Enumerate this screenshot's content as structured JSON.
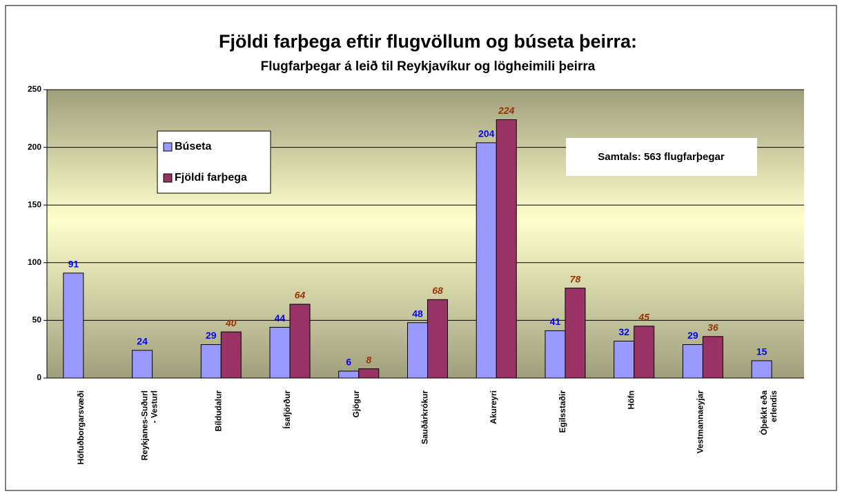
{
  "chart_data": {
    "type": "bar",
    "title": "Fjöldi farþega eftir flugvöllum og búseta þeirra:",
    "subtitle": "Flugfarþegar á leið til Reykjavíkur og lögheimili þeirra",
    "annotation": "Samtals: 563 flugfarþegar",
    "categories": [
      "Höfuðborgarsvæði",
      "Reykjanes-Suðurl\n- Vesturl",
      "Bíldudalur",
      "Ísafjörður",
      "Gjögur",
      "Sauðárkrókur",
      "Akureyri",
      "Egilsstaðir",
      "Höfn",
      "Vestmannaeyjar",
      "Óþekkt eða\nerlendis"
    ],
    "series": [
      {
        "name": "Búseta",
        "color": "#9999ff",
        "label_color": "#0000ff",
        "values": [
          91,
          24,
          29,
          44,
          6,
          48,
          204,
          41,
          32,
          29,
          15
        ]
      },
      {
        "name": "Fjöldi farþega",
        "color": "#993366",
        "label_color": "#993300",
        "values": [
          null,
          null,
          40,
          64,
          8,
          68,
          224,
          78,
          45,
          36,
          null
        ]
      }
    ],
    "ylim": [
      0,
      250
    ],
    "yticks": [
      0,
      50,
      100,
      150,
      200,
      250
    ],
    "grid": true
  }
}
